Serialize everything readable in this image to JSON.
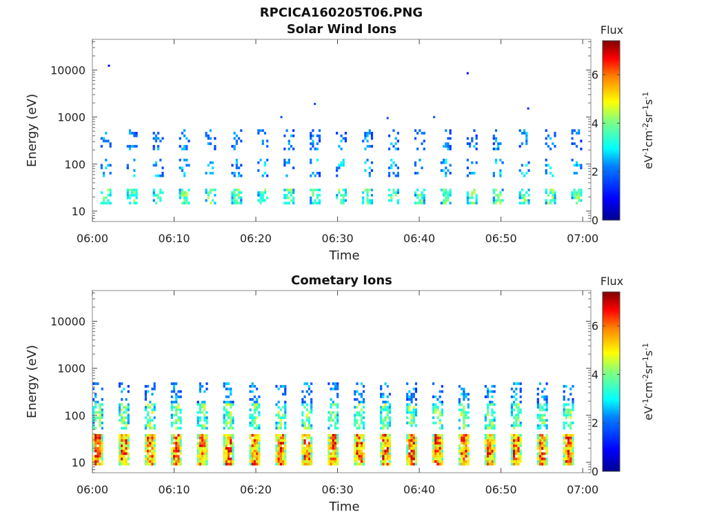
{
  "figure_title": "RPCICA160205T06.PNG",
  "colors": {
    "colormap": [
      "#00008f",
      "#0000ff",
      "#0080ff",
      "#00ffff",
      "#80ff80",
      "#ffff00",
      "#ff8000",
      "#ff0000",
      "#800000"
    ]
  },
  "chart_data": [
    {
      "type": "heatmap",
      "title": "Solar Wind Ions",
      "xlabel": "Time",
      "ylabel": "Energy (eV)",
      "x_ticks": [
        "06:00",
        "06:10",
        "06:20",
        "06:30",
        "06:40",
        "06:50",
        "07:00"
      ],
      "y_ticks": [
        "10",
        "100",
        "1000",
        "10000"
      ],
      "y_scale": "log",
      "ylim": [
        6,
        45000
      ],
      "xlim": [
        "06:00",
        "07:01"
      ],
      "colorbar": {
        "title": "Flux",
        "label": "eV-1cm-2sr-1s-1",
        "ticks": [
          "0",
          "2",
          "4",
          "6"
        ],
        "range": [
          0,
          7.4
        ]
      },
      "pattern": {
        "scan_period_min": 3.2,
        "start_min": 1.5,
        "scans": 19,
        "bands": [
          {
            "energy_lo": 15,
            "energy_hi": 30,
            "flux": 3.8,
            "density": 0.65
          },
          {
            "energy_lo": 60,
            "energy_hi": 130,
            "flux": 2.6,
            "density": 0.25
          },
          {
            "energy_lo": 200,
            "energy_hi": 550,
            "flux": 2.3,
            "density": 0.3
          }
        ],
        "sparse_points": [
          {
            "t_min": 1.9,
            "energy": 13000,
            "flux": 0.9
          },
          {
            "t_min": 45.8,
            "energy": 9000,
            "flux": 0.9
          },
          {
            "t_min": 27.1,
            "energy": 2000,
            "flux": 1.6
          },
          {
            "t_min": 53.2,
            "energy": 1600,
            "flux": 1.2
          },
          {
            "t_min": 23.0,
            "energy": 1050,
            "flux": 1.6
          },
          {
            "t_min": 36.0,
            "energy": 1000,
            "flux": 1.6
          },
          {
            "t_min": 41.7,
            "energy": 1050,
            "flux": 1.6
          }
        ]
      }
    },
    {
      "type": "heatmap",
      "title": "Cometary Ions",
      "xlabel": "Time",
      "ylabel": "Energy (eV)",
      "x_ticks": [
        "06:00",
        "06:10",
        "06:20",
        "06:30",
        "06:40",
        "06:50",
        "07:00"
      ],
      "y_ticks": [
        "10",
        "100",
        "1000",
        "10000"
      ],
      "y_scale": "log",
      "ylim": [
        6,
        45000
      ],
      "xlim": [
        "06:00",
        "07:01"
      ],
      "colorbar": {
        "title": "Flux",
        "label": "eV-1cm-2sr-1s-1",
        "ticks": [
          "0",
          "2",
          "4",
          "6"
        ],
        "range": [
          0,
          7.4
        ]
      },
      "pattern": {
        "scan_period_min": 3.2,
        "start_min": 0.5,
        "scans": 19,
        "bands": [
          {
            "energy_lo": 9,
            "energy_hi": 40,
            "flux": 5.9,
            "density": 0.95
          },
          {
            "energy_lo": 50,
            "energy_hi": 180,
            "flux": 4.0,
            "density": 0.6
          },
          {
            "energy_lo": 180,
            "energy_hi": 500,
            "flux": 2.4,
            "density": 0.35
          }
        ],
        "sparse_points": []
      }
    }
  ]
}
